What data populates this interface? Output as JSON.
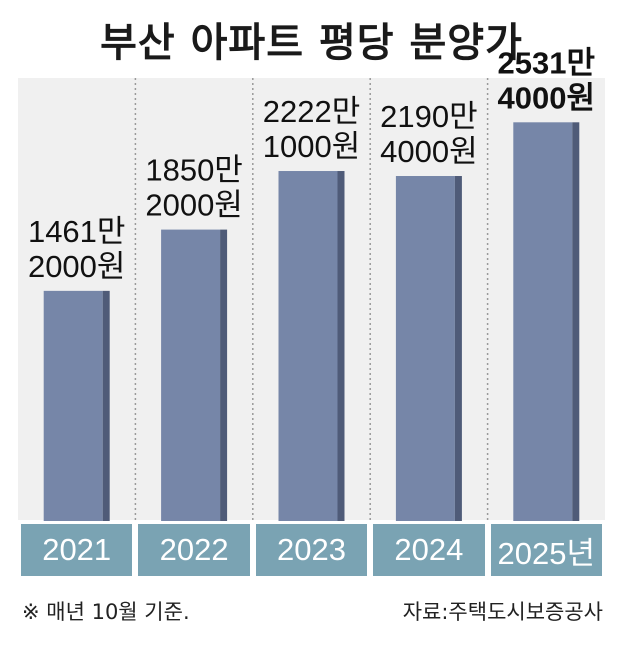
{
  "title": "부산 아파트 평당 분양가",
  "footnote": "※ 매년 10월 기준.",
  "source": "자료:주택도시보증공사",
  "colors": {
    "bar": "#7686a8",
    "bar_side": "#4f5b78",
    "plot_bg": "#f0f0f0",
    "year_box": "#7aa3b3"
  },
  "chart_data": {
    "type": "bar",
    "title": "부산 아파트 평당 분양가",
    "categories": [
      "2021",
      "2022",
      "2023",
      "2024",
      "2025년"
    ],
    "values": [
      14612000,
      18502000,
      22221000,
      21904000,
      25314000
    ],
    "value_labels": [
      [
        "1461만",
        "2000원"
      ],
      [
        "1850만",
        "2000원"
      ],
      [
        "2222만",
        "1000원"
      ],
      [
        "2190만",
        "4000원"
      ],
      [
        "2531만",
        "4000원"
      ]
    ],
    "highlight_index": 4,
    "ylim": [
      0,
      28000000
    ],
    "grid": false
  }
}
